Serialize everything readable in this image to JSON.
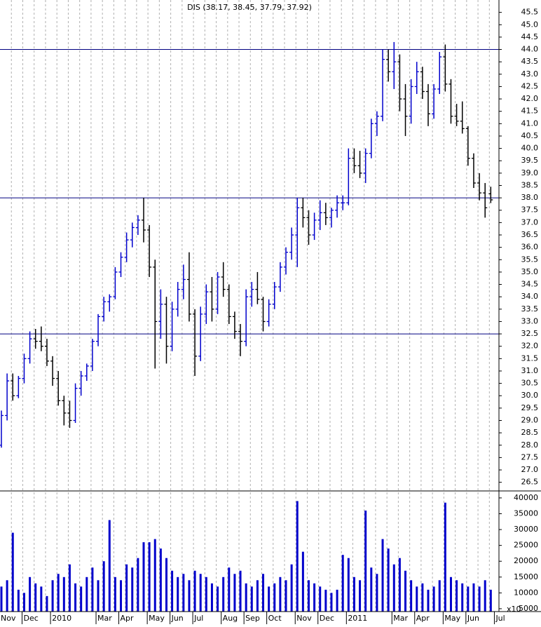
{
  "chart_data": {
    "type": "ohlc",
    "title": "DIS (38.17, 38.45, 37.79, 37.92)",
    "categories": [
      "Nov",
      null,
      null,
      null,
      "Dec",
      null,
      null,
      null,
      null,
      "2010",
      null,
      null,
      null,
      null,
      null,
      null,
      null,
      "Mar",
      null,
      null,
      null,
      "Apr",
      null,
      null,
      null,
      null,
      "May",
      null,
      null,
      null,
      "Jun",
      null,
      null,
      null,
      "Jul",
      null,
      null,
      null,
      null,
      "Aug",
      null,
      null,
      null,
      "Sep",
      null,
      null,
      null,
      "Oct",
      null,
      null,
      null,
      null,
      "Nov",
      null,
      null,
      null,
      "Dec",
      null,
      null,
      null,
      null,
      "2011",
      null,
      null,
      null,
      null,
      null,
      null,
      null,
      "Mar",
      null,
      null,
      null,
      "Apr",
      null,
      null,
      null,
      null,
      "May",
      null,
      null,
      null,
      "Jun",
      null,
      null,
      null,
      null,
      "Jul"
    ],
    "open": [
      28.0,
      29.2,
      30.6,
      30.0,
      30.7,
      31.5,
      32.3,
      32.2,
      32.0,
      31.4,
      30.7,
      29.8,
      29.3,
      29.0,
      30.3,
      30.8,
      31.2,
      32.2,
      33.2,
      33.8,
      34.0,
      35.0,
      35.6,
      36.3,
      36.8,
      37.1,
      36.7,
      35.2,
      33.0,
      33.7,
      32.0,
      33.5,
      34.3,
      34.7,
      33.3,
      31.6,
      33.3,
      34.2,
      33.5,
      34.8,
      34.3,
      33.2,
      32.6,
      32.2,
      34.0,
      34.3,
      33.9,
      33.0,
      33.7,
      34.4,
      35.2,
      35.8,
      36.5,
      37.6,
      37.2,
      36.5,
      37.1,
      37.4,
      37.2,
      37.5,
      37.8,
      37.8,
      39.6,
      39.3,
      39.0,
      39.8,
      41.0,
      41.3,
      43.6,
      43.1,
      43.5,
      42.0,
      41.3,
      42.5,
      43.1,
      42.3,
      41.4,
      42.4,
      43.7,
      42.6,
      41.3,
      41.1,
      40.8,
      39.6,
      38.6,
      38.2,
      38.17,
      null
    ],
    "high": [
      29.4,
      30.9,
      30.9,
      30.8,
      31.7,
      32.6,
      32.7,
      32.8,
      32.3,
      31.6,
      31.0,
      30.0,
      29.8,
      30.5,
      31.0,
      31.3,
      32.3,
      33.3,
      34.0,
      34.1,
      35.2,
      35.8,
      36.6,
      37.0,
      37.3,
      38.0,
      36.9,
      35.5,
      34.3,
      34.0,
      33.8,
      34.6,
      35.3,
      35.8,
      33.5,
      33.6,
      34.5,
      34.8,
      35.0,
      35.4,
      34.5,
      33.4,
      32.9,
      34.3,
      34.6,
      35.0,
      34.0,
      33.9,
      34.6,
      35.4,
      36.0,
      36.8,
      38.0,
      38.0,
      37.5,
      37.4,
      37.9,
      37.8,
      37.6,
      38.1,
      38.1,
      40.0,
      40.0,
      39.9,
      40.0,
      41.2,
      41.5,
      44.0,
      44.0,
      44.3,
      43.8,
      42.6,
      42.8,
      43.5,
      43.3,
      42.6,
      42.6,
      43.9,
      44.2,
      42.8,
      41.8,
      41.9,
      40.9,
      39.8,
      39.0,
      38.6,
      38.45,
      null
    ],
    "low": [
      27.9,
      29.0,
      29.8,
      29.9,
      30.5,
      31.3,
      31.9,
      31.8,
      31.2,
      30.4,
      29.6,
      28.8,
      28.7,
      28.9,
      30.0,
      30.6,
      31.0,
      32.0,
      33.0,
      33.4,
      33.9,
      34.8,
      35.4,
      36.0,
      36.5,
      36.2,
      34.8,
      31.1,
      32.3,
      31.3,
      31.8,
      33.2,
      33.9,
      33.0,
      30.8,
      31.4,
      32.9,
      33.0,
      33.3,
      34.0,
      32.9,
      32.3,
      31.6,
      32.0,
      33.6,
      33.7,
      32.6,
      32.8,
      33.5,
      34.2,
      34.9,
      35.5,
      35.2,
      36.8,
      36.1,
      36.3,
      36.7,
      36.9,
      36.8,
      37.2,
      37.5,
      37.7,
      39.0,
      38.8,
      38.6,
      39.6,
      40.5,
      41.1,
      42.7,
      42.4,
      41.5,
      40.5,
      41.0,
      42.2,
      42.0,
      40.9,
      41.2,
      42.2,
      42.3,
      41.0,
      40.9,
      40.6,
      39.3,
      38.4,
      37.9,
      37.2,
      37.79,
      null
    ],
    "close": [
      29.2,
      30.6,
      30.0,
      30.7,
      31.5,
      32.3,
      32.2,
      32.0,
      31.4,
      30.7,
      29.8,
      29.3,
      29.0,
      30.3,
      30.8,
      31.2,
      32.2,
      33.2,
      33.8,
      34.0,
      35.0,
      35.6,
      36.3,
      36.8,
      37.1,
      36.7,
      35.2,
      33.0,
      33.7,
      32.0,
      33.5,
      34.3,
      34.7,
      33.3,
      31.6,
      33.3,
      34.2,
      33.5,
      34.8,
      34.3,
      33.2,
      32.6,
      32.2,
      34.0,
      34.3,
      33.9,
      33.0,
      33.7,
      34.4,
      35.2,
      35.8,
      36.5,
      37.6,
      37.2,
      36.5,
      37.1,
      37.4,
      37.2,
      37.5,
      37.8,
      37.8,
      39.6,
      39.3,
      39.0,
      39.8,
      41.0,
      41.3,
      43.6,
      43.1,
      43.5,
      42.0,
      41.3,
      42.5,
      43.1,
      42.3,
      41.4,
      42.4,
      43.7,
      42.6,
      41.3,
      41.1,
      40.8,
      39.6,
      38.6,
      38.2,
      37.6,
      37.92,
      null
    ],
    "volume": [
      12000,
      14000,
      29000,
      11000,
      10000,
      15000,
      13000,
      12000,
      9000,
      14000,
      16000,
      15000,
      19000,
      13000,
      12000,
      15000,
      18000,
      14000,
      20000,
      33000,
      15000,
      14000,
      19000,
      18000,
      21000,
      26000,
      26000,
      27000,
      24000,
      21000,
      17000,
      15000,
      16000,
      14000,
      17000,
      16000,
      15000,
      13000,
      12000,
      15000,
      18000,
      16000,
      17000,
      13000,
      12000,
      14000,
      16000,
      12000,
      13000,
      15000,
      14000,
      19000,
      39000,
      23000,
      14000,
      13000,
      12000,
      11000,
      10000,
      11000,
      22000,
      21000,
      15000,
      14000,
      36000,
      18000,
      16000,
      27000,
      24000,
      19000,
      21000,
      17000,
      14000,
      12000,
      13000,
      11000,
      12000,
      14000,
      38500,
      15000,
      14000,
      13000,
      12000,
      13000,
      12000,
      14000,
      11000,
      null
    ],
    "up_color": "#0000cc",
    "down_color": "#000000",
    "volume_color": "#0000cc",
    "ylim": [
      26.15,
      46.0
    ],
    "yticks": [
      {
        "value": 45.5,
        "label": "45.5"
      },
      {
        "value": 45,
        "label": "45.0"
      },
      {
        "value": 44.5,
        "label": "44.5"
      },
      {
        "value": 44,
        "label": "44.0"
      },
      {
        "value": 43.5,
        "label": "43.5"
      },
      {
        "value": 43,
        "label": "43.0"
      },
      {
        "value": 42.5,
        "label": "42.5"
      },
      {
        "value": 42,
        "label": "42.0"
      },
      {
        "value": 41.5,
        "label": "41.5"
      },
      {
        "value": 41,
        "label": "41.0"
      },
      {
        "value": 40.5,
        "label": "40.5"
      },
      {
        "value": 40,
        "label": "40.0"
      },
      {
        "value": 39.5,
        "label": "39.5"
      },
      {
        "value": 39,
        "label": "39.0"
      },
      {
        "value": 38.5,
        "label": "38.5"
      },
      {
        "value": 38,
        "label": "38.0"
      },
      {
        "value": 37.5,
        "label": "37.5"
      },
      {
        "value": 37,
        "label": "37.0"
      },
      {
        "value": 36.5,
        "label": "36.5"
      },
      {
        "value": 36,
        "label": "36.0"
      },
      {
        "value": 35.5,
        "label": "35.5"
      },
      {
        "value": 35,
        "label": "35.0"
      },
      {
        "value": 34.5,
        "label": "34.5"
      },
      {
        "value": 34,
        "label": "34.0"
      },
      {
        "value": 33.5,
        "label": "33.5"
      },
      {
        "value": 33,
        "label": "33.0"
      },
      {
        "value": 32.5,
        "label": "32.5"
      },
      {
        "value": 32,
        "label": "32.0"
      },
      {
        "value": 31.5,
        "label": "31.5"
      },
      {
        "value": 31,
        "label": "31.0"
      },
      {
        "value": 30.5,
        "label": "30.5"
      },
      {
        "value": 30,
        "label": "30.0"
      },
      {
        "value": 29.5,
        "label": "29.5"
      },
      {
        "value": 29,
        "label": "29.0"
      },
      {
        "value": 28.5,
        "label": "28.5"
      },
      {
        "value": 28,
        "label": "28.0"
      },
      {
        "value": 27.5,
        "label": "27.5"
      },
      {
        "value": 27,
        "label": "27.0"
      },
      {
        "value": 26.5,
        "label": "26.5"
      }
    ],
    "hlines": [
      44.0,
      38.0,
      32.5
    ],
    "hline_color": "#000080",
    "volume_ylim": [
      4100,
      42200
    ],
    "volume_yticks": [
      40000,
      35000,
      30000,
      25000,
      20000,
      15000,
      10000,
      5000
    ],
    "volume_multiplier_label": "x10",
    "grid": "x"
  }
}
